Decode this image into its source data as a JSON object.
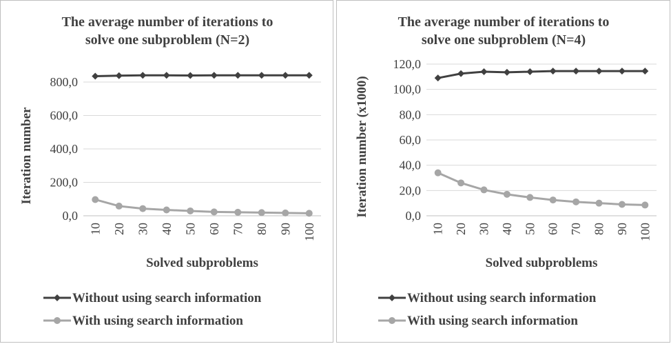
{
  "chart_data": [
    {
      "type": "line",
      "title": "The average number of iterations to solve one subproblem  (N=2)",
      "title_lines": [
        "The average number of iterations to",
        "solve one subproblem  (N=2)"
      ],
      "xlabel": "Solved subproblems",
      "ylabel": "Iteration number",
      "categories": [
        "10",
        "20",
        "30",
        "40",
        "50",
        "60",
        "70",
        "80",
        "90",
        "100"
      ],
      "ylim": [
        0,
        800
      ],
      "yticks": [
        "0,0",
        "200,0",
        "400,0",
        "600,0",
        "800,0"
      ],
      "grid": true,
      "legend_position": "bottom",
      "series": [
        {
          "name": "Without using search information",
          "color": "#404040",
          "marker": "diamond",
          "values": [
            835,
            838,
            840,
            840,
            839,
            840,
            840,
            840,
            840,
            840
          ]
        },
        {
          "name": "With using search information",
          "color": "#a6a6a6",
          "marker": "circle",
          "values": [
            97,
            58,
            43,
            35,
            29,
            23,
            21,
            19,
            17,
            15
          ]
        }
      ]
    },
    {
      "type": "line",
      "title": "The average number of iterations to solve one subproblem  (N=4)",
      "title_lines": [
        "The average number of iterations to",
        "solve one subproblem  (N=4)"
      ],
      "xlabel": "Solved subproblems",
      "ylabel": "Iteration number (x1000)",
      "categories": [
        "10",
        "20",
        "30",
        "40",
        "50",
        "60",
        "70",
        "80",
        "90",
        "100"
      ],
      "ylim": [
        0,
        120
      ],
      "yticks": [
        "0,0",
        "20,0",
        "40,0",
        "60,0",
        "80,0",
        "100,0",
        "120,0"
      ],
      "grid": true,
      "legend_position": "bottom",
      "series": [
        {
          "name": "Without using search information",
          "color": "#404040",
          "marker": "diamond",
          "values": [
            109,
            112.5,
            114,
            113.5,
            114,
            114.5,
            114.5,
            114.5,
            114.5,
            114.5
          ]
        },
        {
          "name": "With using search information",
          "color": "#a6a6a6",
          "marker": "circle",
          "values": [
            34,
            26,
            20.5,
            17,
            14.5,
            12.5,
            11,
            10,
            9,
            8.5
          ]
        }
      ]
    }
  ]
}
